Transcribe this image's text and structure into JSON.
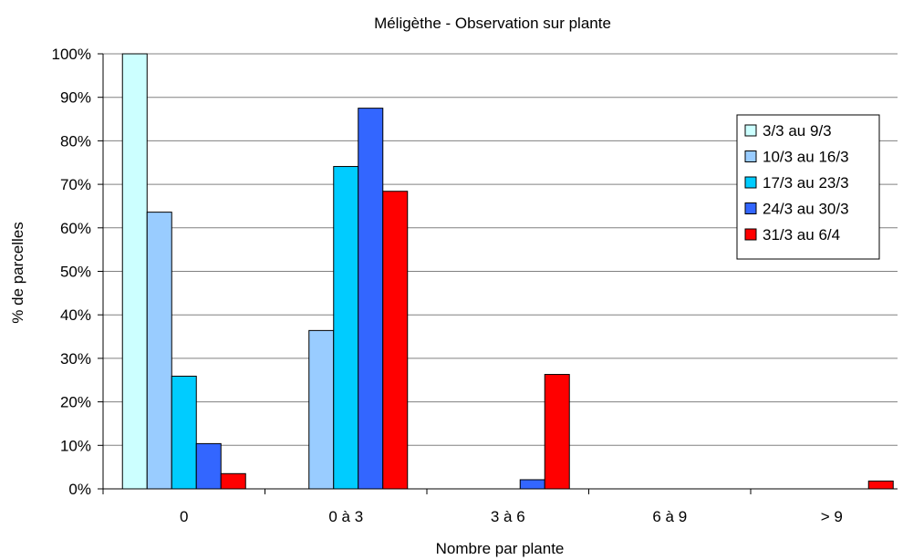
{
  "chart_data": {
    "type": "bar",
    "title": "Méligèthe - Observation sur plante",
    "xlabel": "Nombre par plante",
    "ylabel": "% de parcelles",
    "categories": [
      "0",
      "0 à 3",
      "3 à 6",
      "6 à 9",
      "> 9"
    ],
    "yticks": [
      "0%",
      "10%",
      "20%",
      "30%",
      "40%",
      "50%",
      "60%",
      "70%",
      "80%",
      "90%",
      "100%"
    ],
    "ylim": [
      0,
      100
    ],
    "grid": true,
    "legend_position": "right",
    "series": [
      {
        "name": "3/3 au 9/3",
        "color": "#ccffff",
        "values": [
          100,
          0,
          0,
          0,
          0
        ]
      },
      {
        "name": "10/3 au 16/3",
        "color": "#99ccff",
        "values": [
          63.6,
          36.4,
          0,
          0,
          0
        ]
      },
      {
        "name": "17/3 au 23/3",
        "color": "#00ccff",
        "values": [
          25.9,
          74.1,
          0,
          0,
          0
        ]
      },
      {
        "name": "24/3 au 30/3",
        "color": "#3366ff",
        "values": [
          10.4,
          87.5,
          2.1,
          0,
          0
        ]
      },
      {
        "name": "31/3 au 6/4",
        "color": "#ff0000",
        "values": [
          3.5,
          68.4,
          26.3,
          0,
          1.8
        ]
      }
    ]
  }
}
